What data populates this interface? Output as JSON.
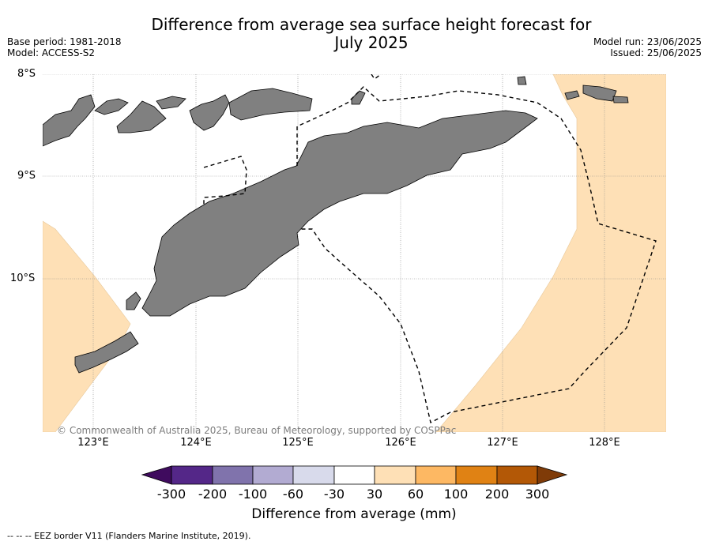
{
  "title_line1": "Difference from average sea surface height forecast for",
  "title_line2": "July 2025",
  "base_period": "Base period: 1981-2018",
  "model": "Model: ACCESS-S2",
  "model_run": "Model run: 23/06/2025",
  "issued": "Issued: 25/06/2025",
  "lat_labels": [
    "8°S",
    "9°S",
    "10°S"
  ],
  "lon_labels": [
    "123°E",
    "124°E",
    "125°E",
    "126°E",
    "127°E",
    "128°E"
  ],
  "copyright": "© Commonwealth of Australia 2025, Bureau of Meteorology, supported by COSPPac",
  "colorbar": {
    "label": "Difference from average (mm)",
    "ticks": [
      "-300",
      "-200",
      "-100",
      "-60",
      "-30",
      "30",
      "60",
      "100",
      "200",
      "300"
    ],
    "colors": [
      "#3f0b5e",
      "#542788",
      "#8073ac",
      "#b2abd2",
      "#d8daeb",
      "#ffffff",
      "#fee0b6",
      "#fdb863",
      "#e08214",
      "#b35806",
      "#7f3b08"
    ]
  },
  "colors": {
    "land": "#808080",
    "positive_anomaly": "#fee0b6",
    "ocean_neutral": "#ffffff",
    "eez_line": "#000000"
  },
  "footnote": "--  --  -- EEZ border V11 (Flanders Marine Institute, 2019)."
}
